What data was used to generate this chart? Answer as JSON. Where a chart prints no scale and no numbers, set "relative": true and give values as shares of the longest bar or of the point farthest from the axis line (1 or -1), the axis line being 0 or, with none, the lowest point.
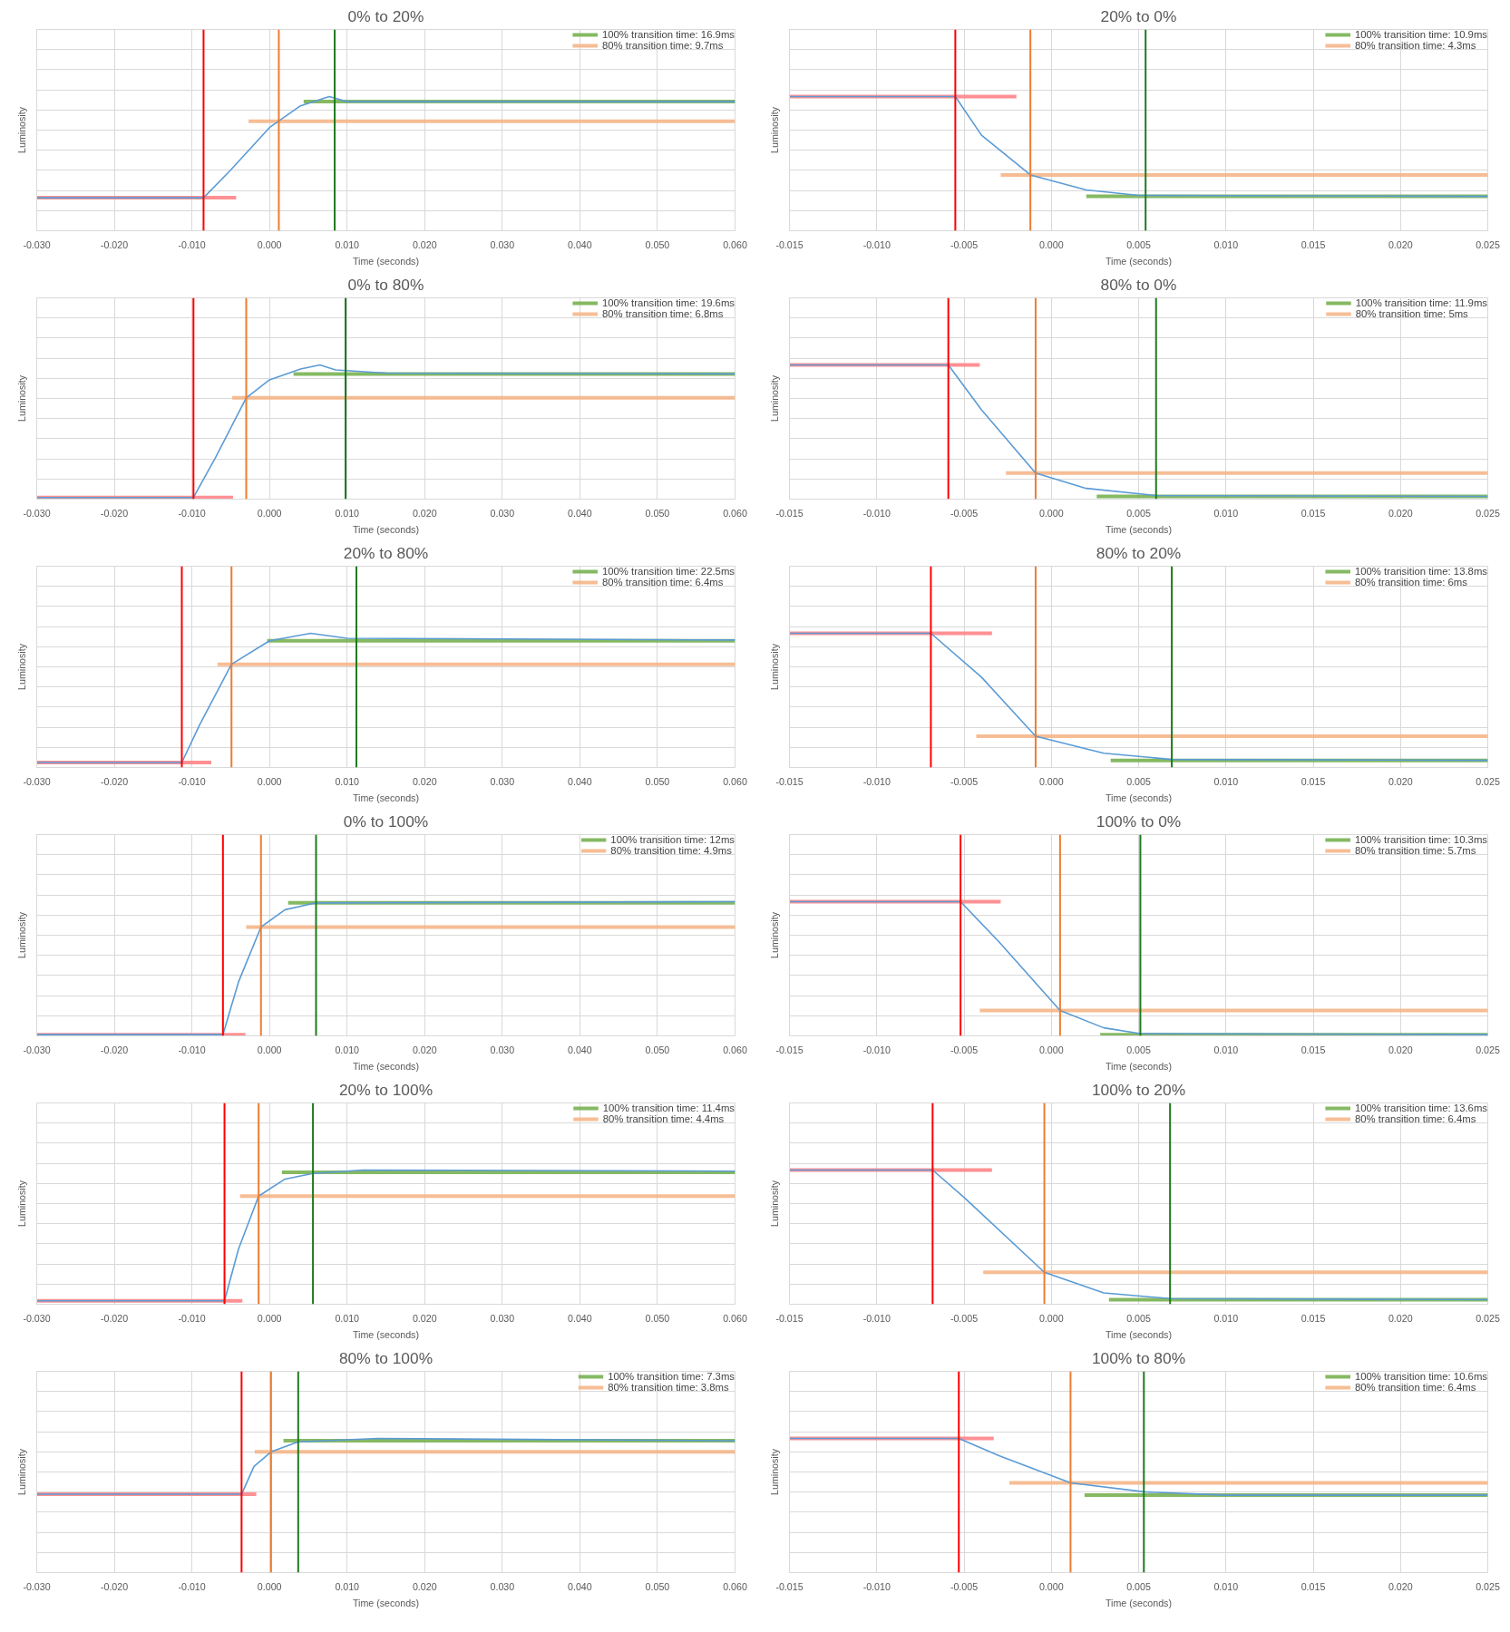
{
  "chart_data": [
    {
      "type": "line",
      "title": "0% to 20%",
      "xlabel": "Time (seconds)",
      "ylabel": "Luminosity",
      "relative": true,
      "tick_labels": "x",
      "grid": true,
      "legend": "top right",
      "xlim": [
        -0.03,
        0.06
      ],
      "xticks": [
        {
          "value": -0.03,
          "label": "-0.030"
        },
        {
          "value": -0.02,
          "label": "-0.020"
        },
        {
          "value": -0.01,
          "label": "-0.010"
        },
        {
          "value": 0,
          "label": "0.000"
        },
        {
          "value": 0.01,
          "label": "0.010"
        },
        {
          "value": 0.02,
          "label": "0.020"
        },
        {
          "value": 0.03,
          "label": "0.030"
        },
        {
          "value": 0.04,
          "label": "0.040"
        },
        {
          "value": 0.05,
          "label": "0.050"
        },
        {
          "value": 0.06,
          "label": "0.060"
        }
      ],
      "series": [
        {
          "name": "100% transition time: 16.9ms",
          "color": "#70ad47",
          "x": [
            0.0044,
            0.06
          ],
          "values": [
            0.962,
            0.962
          ]
        },
        {
          "name": "80% transition time: 9.7ms",
          "color": "#f4b183",
          "x": [
            -0.0027,
            0.06
          ],
          "values": [
            0.816,
            0.816
          ]
        },
        {
          "color": "#ff7c80",
          "x": [
            -0.03,
            -0.0043
          ],
          "values": [
            0.246,
            0.246
          ]
        },
        {
          "color": "#5b9bd5",
          "x": [
            -0.03,
            -0.0085,
            -0.005,
            0.0,
            0.004,
            0.0077,
            0.01,
            0.06
          ],
          "values": [
            0.246,
            0.246,
            0.453,
            0.769,
            0.931,
            1,
            0.962,
            0.962
          ]
        }
      ],
      "ref_lines": [
        {
          "axis": "x",
          "value": -0.0085,
          "color": "#ff0000"
        },
        {
          "axis": "x",
          "value": 0.0012,
          "color": "#ed7d31"
        },
        {
          "axis": "x",
          "value": 0.0084,
          "color": "#1e7b1e"
        }
      ]
    },
    {
      "type": "line",
      "title": "20% to 0%",
      "xlabel": "Time (seconds)",
      "ylabel": "Luminosity",
      "relative": true,
      "tick_labels": "x",
      "grid": true,
      "legend": "top right",
      "xlim": [
        -0.015,
        0.025
      ],
      "xticks": [
        {
          "value": -0.015,
          "label": "-0.015"
        },
        {
          "value": -0.01,
          "label": "-0.010"
        },
        {
          "value": -0.005,
          "label": "-0.005"
        },
        {
          "value": 0,
          "label": "0.000"
        },
        {
          "value": 0.005,
          "label": "0.005"
        },
        {
          "value": 0.01,
          "label": "0.010"
        },
        {
          "value": 0.015,
          "label": "0.015"
        },
        {
          "value": 0.02,
          "label": "0.020"
        },
        {
          "value": 0.025,
          "label": "0.025"
        }
      ],
      "series": [
        {
          "name": "100% transition time: 10.9ms",
          "color": "#70ad47",
          "x": [
            0.002,
            0.025
          ],
          "values": [
            0.256,
            0.256
          ]
        },
        {
          "name": "80% transition time: 4.3ms",
          "color": "#f4b183",
          "x": [
            -0.0029,
            0.025
          ],
          "values": [
            0.416,
            0.416
          ]
        },
        {
          "color": "#ff7c80",
          "x": [
            -0.015,
            -0.002
          ],
          "values": [
            1,
            1
          ]
        },
        {
          "color": "#5b9bd5",
          "x": [
            -0.015,
            -0.0055,
            -0.004,
            -0.0012,
            0.002,
            0.005,
            0.025
          ],
          "values": [
            1,
            1,
            0.712,
            0.416,
            0.304,
            0.264,
            0.256
          ]
        }
      ],
      "ref_lines": [
        {
          "axis": "x",
          "value": -0.0055,
          "color": "#ff0000"
        },
        {
          "axis": "x",
          "value": -0.0012,
          "color": "#ed7d31"
        },
        {
          "axis": "x",
          "value": 0.0054,
          "color": "#1e7b1e"
        }
      ]
    },
    {
      "type": "line",
      "title": "0% to 80%",
      "xlabel": "Time (seconds)",
      "ylabel": "Luminosity",
      "relative": true,
      "tick_labels": "x",
      "grid": true,
      "legend": "top right",
      "xlim": [
        -0.03,
        0.06
      ],
      "xticks": [
        {
          "value": -0.03,
          "label": "-0.030"
        },
        {
          "value": -0.02,
          "label": "-0.020"
        },
        {
          "value": -0.01,
          "label": "-0.010"
        },
        {
          "value": 0,
          "label": "0.000"
        },
        {
          "value": 0.01,
          "label": "0.010"
        },
        {
          "value": 0.02,
          "label": "0.020"
        },
        {
          "value": 0.03,
          "label": "0.030"
        },
        {
          "value": 0.04,
          "label": "0.040"
        },
        {
          "value": 0.05,
          "label": "0.050"
        },
        {
          "value": 0.06,
          "label": "0.060"
        }
      ],
      "series": [
        {
          "name": "100% transition time: 19.6ms",
          "color": "#70ad47",
          "x": [
            0.0031,
            0.06
          ],
          "values": [
            0.933,
            0.933
          ]
        },
        {
          "name": "80% transition time: 6.8ms",
          "color": "#f4b183",
          "x": [
            -0.0048,
            0.06
          ],
          "values": [
            0.755,
            0.755
          ]
        },
        {
          "color": "#ff7c80",
          "x": [
            -0.03,
            -0.0047
          ],
          "values": [
            0.012,
            0.012
          ]
        },
        {
          "color": "#5b9bd5",
          "x": [
            -0.03,
            -0.0098,
            -0.007,
            -0.003,
            0.0,
            0.004,
            0.0065,
            0.0085,
            0.015,
            0.06
          ],
          "values": [
            0.012,
            0.012,
            0.305,
            0.755,
            0.889,
            0.969,
            1,
            0.963,
            0.939,
            0.933
          ]
        }
      ],
      "ref_lines": [
        {
          "axis": "x",
          "value": -0.0098,
          "color": "#ff0000"
        },
        {
          "axis": "x",
          "value": -0.003,
          "color": "#ed7d31"
        },
        {
          "axis": "x",
          "value": 0.0098,
          "color": "#1e7b1e"
        }
      ]
    },
    {
      "type": "line",
      "title": "80% to 0%",
      "xlabel": "Time (seconds)",
      "ylabel": "Luminosity",
      "relative": true,
      "tick_labels": "x",
      "grid": true,
      "legend": "top right",
      "xlim": [
        -0.015,
        0.025
      ],
      "xticks": [
        {
          "value": -0.015,
          "label": "-0.015"
        },
        {
          "value": -0.01,
          "label": "-0.010"
        },
        {
          "value": -0.005,
          "label": "-0.005"
        },
        {
          "value": 0,
          "label": "0.000"
        },
        {
          "value": 0.005,
          "label": "0.005"
        },
        {
          "value": 0.01,
          "label": "0.010"
        },
        {
          "value": 0.015,
          "label": "0.015"
        },
        {
          "value": 0.02,
          "label": "0.020"
        },
        {
          "value": 0.025,
          "label": "0.025"
        }
      ],
      "series": [
        {
          "name": "100% transition time: 11.9ms",
          "color": "#70ad47",
          "x": [
            0.0026,
            0.025
          ],
          "values": [
            0.02,
            0.02
          ]
        },
        {
          "name": "80% transition time: 5ms",
          "color": "#f4b183",
          "x": [
            -0.0026,
            0.025
          ],
          "values": [
            0.194,
            0.194
          ]
        },
        {
          "color": "#ff7c80",
          "x": [
            -0.015,
            -0.0041
          ],
          "values": [
            1,
            1
          ]
        },
        {
          "color": "#5b9bd5",
          "x": [
            -0.015,
            -0.0059,
            -0.004,
            -0.0009,
            0.002,
            0.006,
            0.025
          ],
          "values": [
            1,
            1,
            0.666,
            0.194,
            0.08,
            0.027,
            0.02
          ]
        }
      ],
      "ref_lines": [
        {
          "axis": "x",
          "value": -0.0059,
          "color": "#ff0000"
        },
        {
          "axis": "x",
          "value": -0.0009,
          "color": "#ed7d31"
        },
        {
          "axis": "x",
          "value": 0.006,
          "color": "#1e7b1e"
        }
      ]
    },
    {
      "type": "line",
      "title": "20% to 80%",
      "xlabel": "Time (seconds)",
      "ylabel": "Luminosity",
      "relative": true,
      "tick_labels": "x",
      "grid": true,
      "legend": "top right",
      "xlim": [
        -0.03,
        0.06
      ],
      "xticks": [
        {
          "value": -0.03,
          "label": "-0.030"
        },
        {
          "value": -0.02,
          "label": "-0.020"
        },
        {
          "value": -0.01,
          "label": "-0.010"
        },
        {
          "value": 0,
          "label": "0.000"
        },
        {
          "value": 0.01,
          "label": "0.010"
        },
        {
          "value": 0.02,
          "label": "0.020"
        },
        {
          "value": 0.03,
          "label": "0.030"
        },
        {
          "value": 0.04,
          "label": "0.040"
        },
        {
          "value": 0.05,
          "label": "0.050"
        },
        {
          "value": 0.06,
          "label": "0.060"
        }
      ],
      "series": [
        {
          "name": "100% transition time: 22.5ms",
          "color": "#70ad47",
          "x": [
            -0.0003,
            0.06
          ],
          "values": [
            0.944,
            0.944
          ]
        },
        {
          "name": "80% transition time: 6.4ms",
          "color": "#f4b183",
          "x": [
            -0.0067,
            0.06
          ],
          "values": [
            0.769,
            0.769
          ]
        },
        {
          "color": "#ff7c80",
          "x": [
            -0.03,
            -0.0075
          ],
          "values": [
            0.037,
            0.037
          ]
        },
        {
          "color": "#5b9bd5",
          "x": [
            -0.03,
            -0.0113,
            -0.009,
            -0.0049,
            0.0,
            0.0053,
            0.01,
            0.06
          ],
          "values": [
            0.037,
            0.037,
            0.318,
            0.769,
            0.944,
            1,
            0.963,
            0.95
          ]
        }
      ],
      "ref_lines": [
        {
          "axis": "x",
          "value": -0.0113,
          "color": "#ff0000"
        },
        {
          "axis": "x",
          "value": -0.0049,
          "color": "#ed7d31"
        },
        {
          "axis": "x",
          "value": 0.0112,
          "color": "#1e7b1e"
        }
      ]
    },
    {
      "type": "line",
      "title": "80% to 20%",
      "xlabel": "Time (seconds)",
      "ylabel": "Luminosity",
      "relative": true,
      "tick_labels": "x",
      "grid": true,
      "legend": "top right",
      "xlim": [
        -0.015,
        0.025
      ],
      "xticks": [
        {
          "value": -0.015,
          "label": "-0.015"
        },
        {
          "value": -0.01,
          "label": "-0.010"
        },
        {
          "value": -0.005,
          "label": "-0.005"
        },
        {
          "value": 0,
          "label": "0.000"
        },
        {
          "value": 0.005,
          "label": "0.005"
        },
        {
          "value": 0.01,
          "label": "0.010"
        },
        {
          "value": 0.015,
          "label": "0.015"
        },
        {
          "value": 0.02,
          "label": "0.020"
        },
        {
          "value": 0.025,
          "label": "0.025"
        }
      ],
      "series": [
        {
          "name": "100% transition time: 13.8ms",
          "color": "#70ad47",
          "x": [
            0.0034,
            0.025
          ],
          "values": [
            0.053,
            0.053
          ]
        },
        {
          "name": "80% transition time: 6ms",
          "color": "#f4b183",
          "x": [
            -0.0043,
            0.025
          ],
          "values": [
            0.233,
            0.233
          ]
        },
        {
          "color": "#ff7c80",
          "x": [
            -0.015,
            -0.0034
          ],
          "values": [
            1,
            1
          ]
        },
        {
          "color": "#5b9bd5",
          "x": [
            -0.015,
            -0.0069,
            -0.004,
            -0.0009,
            0.003,
            0.0069,
            0.025
          ],
          "values": [
            1,
            1,
            0.673,
            0.233,
            0.106,
            0.06,
            0.053
          ]
        }
      ],
      "ref_lines": [
        {
          "axis": "x",
          "value": -0.0069,
          "color": "#ff0000"
        },
        {
          "axis": "x",
          "value": -0.0009,
          "color": "#ed7d31"
        },
        {
          "axis": "x",
          "value": 0.0069,
          "color": "#1e7b1e"
        }
      ]
    },
    {
      "type": "line",
      "title": "0% to 100%",
      "xlabel": "Time (seconds)",
      "ylabel": "Luminosity",
      "relative": true,
      "tick_labels": "x",
      "grid": true,
      "legend": "top right",
      "xlim": [
        -0.03,
        0.06
      ],
      "xticks": [
        {
          "value": -0.03,
          "label": "-0.030"
        },
        {
          "value": -0.02,
          "label": "-0.020"
        },
        {
          "value": -0.01,
          "label": "-0.010"
        },
        {
          "value": 0,
          "label": "0.000"
        },
        {
          "value": 0.01,
          "label": "0.010"
        },
        {
          "value": 0.02,
          "label": "0.020"
        },
        {
          "value": 0.03,
          "label": "0.030"
        },
        {
          "value": 0.04,
          "label": "0.040"
        },
        {
          "value": 0.05,
          "label": "0.050"
        },
        {
          "value": 0.06,
          "label": "0.060"
        }
      ],
      "series": [
        {
          "name": "100% transition time: 12ms",
          "color": "#70ad47",
          "x": [
            0.0024,
            0.06
          ],
          "values": [
            0.991,
            0.991
          ]
        },
        {
          "name": "80% transition time: 4.9ms",
          "color": "#f4b183",
          "x": [
            -0.003,
            0.06
          ],
          "values": [
            0.811,
            0.811
          ]
        },
        {
          "color": "#ff7c80",
          "x": [
            -0.03,
            -0.0031
          ],
          "values": [
            0.009,
            0.009
          ]
        },
        {
          "color": "#5b9bd5",
          "x": [
            -0.03,
            -0.006,
            -0.004,
            -0.0011,
            0.002,
            0.006,
            0.06
          ],
          "values": [
            0.009,
            0.009,
            0.401,
            0.811,
            0.94,
            0.991,
            1
          ]
        }
      ],
      "ref_lines": [
        {
          "axis": "x",
          "value": -0.006,
          "color": "#ff0000"
        },
        {
          "axis": "x",
          "value": -0.0011,
          "color": "#ed7d31"
        },
        {
          "axis": "x",
          "value": 0.006,
          "color": "#1e7b1e"
        }
      ]
    },
    {
      "type": "line",
      "title": "100% to 0%",
      "xlabel": "Time (seconds)",
      "ylabel": "Luminosity",
      "relative": true,
      "tick_labels": "x",
      "grid": true,
      "legend": "top right",
      "xlim": [
        -0.015,
        0.025
      ],
      "xticks": [
        {
          "value": -0.015,
          "label": "-0.015"
        },
        {
          "value": -0.01,
          "label": "-0.010"
        },
        {
          "value": -0.005,
          "label": "-0.005"
        },
        {
          "value": 0,
          "label": "0.000"
        },
        {
          "value": 0.005,
          "label": "0.005"
        },
        {
          "value": 0.01,
          "label": "0.010"
        },
        {
          "value": 0.015,
          "label": "0.015"
        },
        {
          "value": 0.02,
          "label": "0.020"
        },
        {
          "value": 0.025,
          "label": "0.025"
        }
      ],
      "series": [
        {
          "name": "100% transition time: 10.3ms",
          "color": "#70ad47",
          "x": [
            0.0028,
            0.025
          ],
          "values": [
            0.009,
            0.009
          ]
        },
        {
          "name": "80% transition time: 5.7ms",
          "color": "#f4b183",
          "x": [
            -0.0041,
            0.025
          ],
          "values": [
            0.189,
            0.189
          ]
        },
        {
          "color": "#ff7c80",
          "x": [
            -0.015,
            -0.0029
          ],
          "values": [
            1,
            1
          ]
        },
        {
          "color": "#5b9bd5",
          "x": [
            -0.015,
            -0.0052,
            -0.003,
            0.0005,
            0.003,
            0.0051,
            0.025
          ],
          "values": [
            1,
            1,
            0.701,
            0.189,
            0.06,
            0.017,
            0.009
          ]
        }
      ],
      "ref_lines": [
        {
          "axis": "x",
          "value": -0.0052,
          "color": "#ff0000"
        },
        {
          "axis": "x",
          "value": 0.0005,
          "color": "#ed7d31"
        },
        {
          "axis": "x",
          "value": 0.0051,
          "color": "#1e7b1e"
        }
      ]
    },
    {
      "type": "line",
      "title": "20% to 100%",
      "xlabel": "Time (seconds)",
      "ylabel": "Luminosity",
      "relative": true,
      "tick_labels": "x",
      "grid": true,
      "legend": "top right",
      "xlim": [
        -0.03,
        0.06
      ],
      "xticks": [
        {
          "value": -0.03,
          "label": "-0.030"
        },
        {
          "value": -0.02,
          "label": "-0.020"
        },
        {
          "value": -0.01,
          "label": "-0.010"
        },
        {
          "value": 0,
          "label": "0.000"
        },
        {
          "value": 0.01,
          "label": "0.010"
        },
        {
          "value": 0.02,
          "label": "0.020"
        },
        {
          "value": 0.03,
          "label": "0.030"
        },
        {
          "value": 0.04,
          "label": "0.040"
        },
        {
          "value": 0.05,
          "label": "0.050"
        },
        {
          "value": 0.06,
          "label": "0.060"
        }
      ],
      "series": [
        {
          "name": "100% transition time: 11.4ms",
          "color": "#70ad47",
          "x": [
            0.0016,
            0.06
          ],
          "values": [
            0.983,
            0.983
          ]
        },
        {
          "name": "80% transition time: 4.4ms",
          "color": "#f4b183",
          "x": [
            -0.0038,
            0.06
          ],
          "values": [
            0.806,
            0.806
          ]
        },
        {
          "color": "#ff7c80",
          "x": [
            -0.03,
            -0.0035
          ],
          "values": [
            0.025,
            0.025
          ]
        },
        {
          "color": "#5b9bd5",
          "x": [
            -0.03,
            -0.0058,
            -0.004,
            -0.0014,
            0.002,
            0.0056,
            0.012,
            0.06
          ],
          "values": [
            0.025,
            0.025,
            0.411,
            0.806,
            0.933,
            0.975,
            1,
            0.992
          ]
        }
      ],
      "ref_lines": [
        {
          "axis": "x",
          "value": -0.0058,
          "color": "#ff0000"
        },
        {
          "axis": "x",
          "value": -0.0014,
          "color": "#ed7d31"
        },
        {
          "axis": "x",
          "value": 0.0056,
          "color": "#1e7b1e"
        }
      ]
    },
    {
      "type": "line",
      "title": "100% to 20%",
      "xlabel": "Time (seconds)",
      "ylabel": "Luminosity",
      "relative": true,
      "tick_labels": "x",
      "grid": true,
      "legend": "top right",
      "xlim": [
        -0.015,
        0.025
      ],
      "xticks": [
        {
          "value": -0.015,
          "label": "-0.015"
        },
        {
          "value": -0.01,
          "label": "-0.010"
        },
        {
          "value": -0.005,
          "label": "-0.005"
        },
        {
          "value": 0,
          "label": "0.000"
        },
        {
          "value": 0.005,
          "label": "0.005"
        },
        {
          "value": 0.01,
          "label": "0.010"
        },
        {
          "value": 0.015,
          "label": "0.015"
        },
        {
          "value": 0.02,
          "label": "0.020"
        },
        {
          "value": 0.025,
          "label": "0.025"
        }
      ],
      "series": [
        {
          "name": "100% transition time: 13.6ms",
          "color": "#70ad47",
          "x": [
            0.0033,
            0.025
          ],
          "values": [
            0.034,
            0.034
          ]
        },
        {
          "name": "80% transition time: 6.4ms",
          "color": "#f4b183",
          "x": [
            -0.0039,
            0.025
          ],
          "values": [
            0.238,
            0.238
          ]
        },
        {
          "color": "#ff7c80",
          "x": [
            -0.015,
            -0.0034
          ],
          "values": [
            1,
            1
          ]
        },
        {
          "color": "#5b9bd5",
          "x": [
            -0.015,
            -0.0068,
            -0.005,
            -0.0004,
            0.003,
            0.0068,
            0.025
          ],
          "values": [
            1,
            1,
            0.796,
            0.238,
            0.084,
            0.042,
            0.034
          ]
        }
      ],
      "ref_lines": [
        {
          "axis": "x",
          "value": -0.0068,
          "color": "#ff0000"
        },
        {
          "axis": "x",
          "value": -0.0004,
          "color": "#ed7d31"
        },
        {
          "axis": "x",
          "value": 0.0068,
          "color": "#1e7b1e"
        }
      ]
    },
    {
      "type": "line",
      "title": "80% to 100%",
      "xlabel": "Time (seconds)",
      "ylabel": "Luminosity",
      "relative": true,
      "tick_labels": "x",
      "grid": true,
      "legend": "top right",
      "xlim": [
        -0.03,
        0.06
      ],
      "xticks": [
        {
          "value": -0.03,
          "label": "-0.030"
        },
        {
          "value": -0.02,
          "label": "-0.020"
        },
        {
          "value": -0.01,
          "label": "-0.010"
        },
        {
          "value": 0,
          "label": "0.000"
        },
        {
          "value": 0.01,
          "label": "0.010"
        },
        {
          "value": 0.02,
          "label": "0.020"
        },
        {
          "value": 0.03,
          "label": "0.030"
        },
        {
          "value": 0.04,
          "label": "0.040"
        },
        {
          "value": 0.05,
          "label": "0.050"
        },
        {
          "value": 0.06,
          "label": "0.060"
        }
      ],
      "series": [
        {
          "name": "100% transition time: 7.3ms",
          "color": "#70ad47",
          "x": [
            0.0018,
            0.06
          ],
          "values": [
            0.983,
            0.983
          ]
        },
        {
          "name": "80% transition time: 3.8ms",
          "color": "#f4b183",
          "x": [
            -0.0019,
            0.06
          ],
          "values": [
            0.9,
            0.9
          ]
        },
        {
          "color": "#ff7c80",
          "x": [
            -0.03,
            -0.0017
          ],
          "values": [
            0.584,
            0.584
          ]
        },
        {
          "color": "#5b9bd5",
          "x": [
            -0.03,
            -0.0036,
            -0.002,
            0.0002,
            0.0037,
            0.014,
            0.06
          ],
          "values": [
            0.584,
            0.584,
            0.791,
            0.9,
            0.975,
            1,
            0.983
          ]
        }
      ],
      "ref_lines": [
        {
          "axis": "x",
          "value": -0.0036,
          "color": "#ff0000"
        },
        {
          "axis": "x",
          "value": 0.0002,
          "color": "#ed7d31"
        },
        {
          "axis": "x",
          "value": 0.0037,
          "color": "#1e7b1e"
        }
      ]
    },
    {
      "type": "line",
      "title": "100% to 80%",
      "xlabel": "Time (seconds)",
      "ylabel": "Luminosity",
      "relative": true,
      "tick_labels": "x",
      "grid": true,
      "legend": "top right",
      "xlim": [
        -0.015,
        0.025
      ],
      "xticks": [
        {
          "value": -0.015,
          "label": "-0.015"
        },
        {
          "value": -0.01,
          "label": "-0.010"
        },
        {
          "value": -0.005,
          "label": "-0.005"
        },
        {
          "value": 0,
          "label": "0.000"
        },
        {
          "value": 0.005,
          "label": "0.005"
        },
        {
          "value": 0.01,
          "label": "0.010"
        },
        {
          "value": 0.015,
          "label": "0.015"
        },
        {
          "value": 0.02,
          "label": "0.020"
        },
        {
          "value": 0.025,
          "label": "0.025"
        }
      ],
      "series": [
        {
          "name": "100% transition time: 10.6ms",
          "color": "#70ad47",
          "x": [
            0.0019,
            0.025
          ],
          "values": [
            0.577,
            0.577
          ]
        },
        {
          "name": "80% transition time: 6.4ms",
          "color": "#f4b183",
          "x": [
            -0.0024,
            0.025
          ],
          "values": [
            0.669,
            0.669
          ]
        },
        {
          "color": "#ff7c80",
          "x": [
            -0.015,
            -0.0033
          ],
          "values": [
            1,
            1
          ]
        },
        {
          "color": "#5b9bd5",
          "x": [
            -0.015,
            -0.0053,
            -0.003,
            0.0011,
            0.0053,
            0.01,
            0.025
          ],
          "values": [
            1,
            1,
            0.872,
            0.669,
            0.602,
            0.577,
            0.577
          ]
        }
      ],
      "ref_lines": [
        {
          "axis": "x",
          "value": -0.0053,
          "color": "#ff0000"
        },
        {
          "axis": "x",
          "value": 0.0011,
          "color": "#ed7d31"
        },
        {
          "axis": "x",
          "value": 0.0053,
          "color": "#1e7b1e"
        }
      ]
    }
  ]
}
